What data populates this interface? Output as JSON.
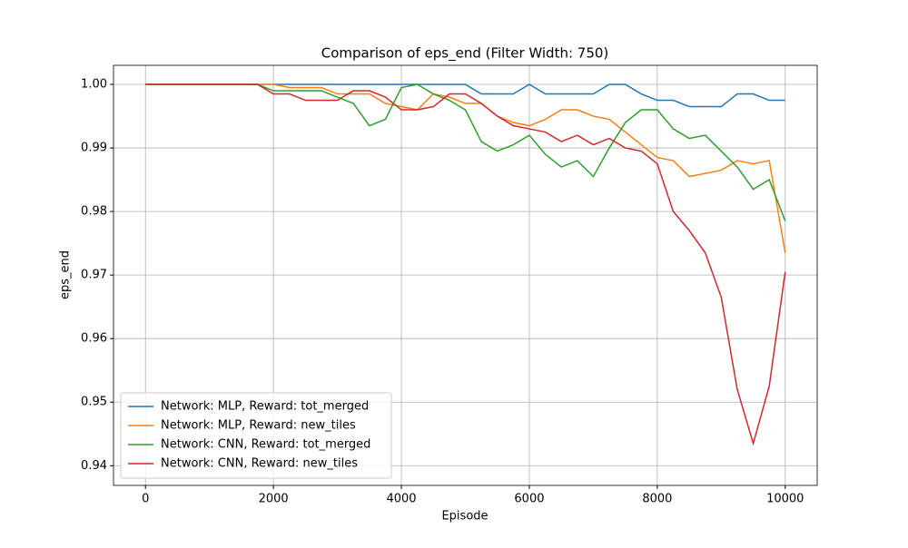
{
  "chart_data": {
    "type": "line",
    "title": "Comparison of eps_end (Filter Width: 750)",
    "x_label": "Episode",
    "y_label": "eps_end",
    "x": [
      0,
      250,
      500,
      750,
      1000,
      1250,
      1500,
      1750,
      2000,
      2250,
      2500,
      2750,
      3000,
      3250,
      3500,
      3750,
      4000,
      4250,
      4500,
      4750,
      5000,
      5250,
      5500,
      5750,
      6000,
      6250,
      6500,
      6750,
      7000,
      7250,
      7500,
      7750,
      8000,
      8250,
      8500,
      8750,
      9000,
      9250,
      9500,
      9750,
      10000
    ],
    "series": [
      {
        "name": "Network: MLP, Reward: tot_merged",
        "color": "#1f77b4",
        "values": [
          1.0,
          1.0,
          1.0,
          1.0,
          1.0,
          1.0,
          1.0,
          1.0,
          1.0,
          1.0,
          1.0,
          1.0,
          1.0,
          1.0,
          1.0,
          1.0,
          1.0,
          1.0,
          1.0,
          1.0,
          1.0,
          0.9985,
          0.9985,
          0.9985,
          1.0,
          0.9985,
          0.9985,
          0.9985,
          0.9985,
          1.0,
          1.0,
          0.9985,
          0.9975,
          0.9975,
          0.9965,
          0.9965,
          0.9965,
          0.9985,
          0.9985,
          0.9975,
          0.9975
        ]
      },
      {
        "name": "Network: MLP, Reward: new_tiles",
        "color": "#ff7f0e",
        "values": [
          1.0,
          1.0,
          1.0,
          1.0,
          1.0,
          1.0,
          1.0,
          1.0,
          1.0,
          0.9995,
          0.9995,
          0.9995,
          0.9985,
          0.9985,
          0.9985,
          0.997,
          0.9965,
          0.996,
          0.9985,
          0.998,
          0.997,
          0.997,
          0.995,
          0.994,
          0.9935,
          0.9945,
          0.996,
          0.996,
          0.995,
          0.9945,
          0.9925,
          0.9905,
          0.9885,
          0.988,
          0.9855,
          0.986,
          0.9865,
          0.988,
          0.9875,
          0.988,
          0.9735
        ]
      },
      {
        "name": "Network: CNN, Reward: tot_merged",
        "color": "#2ca02c",
        "values": [
          1.0,
          1.0,
          1.0,
          1.0,
          1.0,
          1.0,
          1.0,
          1.0,
          0.999,
          0.999,
          0.999,
          0.999,
          0.998,
          0.997,
          0.9935,
          0.9945,
          0.9995,
          1.0,
          0.9985,
          0.9975,
          0.996,
          0.991,
          0.9895,
          0.9905,
          0.992,
          0.989,
          0.987,
          0.988,
          0.9855,
          0.99,
          0.994,
          0.996,
          0.996,
          0.993,
          0.9915,
          0.992,
          0.9895,
          0.987,
          0.9835,
          0.985,
          0.9785
        ]
      },
      {
        "name": "Network: CNN, Reward: new_tiles",
        "color": "#d62728",
        "values": [
          1.0,
          1.0,
          1.0,
          1.0,
          1.0,
          1.0,
          1.0,
          1.0,
          0.9985,
          0.9985,
          0.9975,
          0.9975,
          0.9975,
          0.999,
          0.999,
          0.998,
          0.996,
          0.996,
          0.9965,
          0.9985,
          0.9985,
          0.997,
          0.995,
          0.9935,
          0.993,
          0.9925,
          0.991,
          0.992,
          0.9905,
          0.9915,
          0.99,
          0.9895,
          0.9875,
          0.98,
          0.977,
          0.9735,
          0.9665,
          0.952,
          0.9435,
          0.9525,
          0.9705
        ]
      }
    ],
    "xlim": [
      -500,
      10500
    ],
    "ylim": [
      0.9369,
      1.003
    ],
    "xticks": [
      0,
      2000,
      4000,
      6000,
      8000,
      10000
    ],
    "yticks": [
      0.94,
      0.95,
      0.96,
      0.97,
      0.98,
      0.99,
      {
        "value": 1.0,
        "label": "1.00"
      }
    ],
    "grid": true,
    "legend": "lower left"
  }
}
